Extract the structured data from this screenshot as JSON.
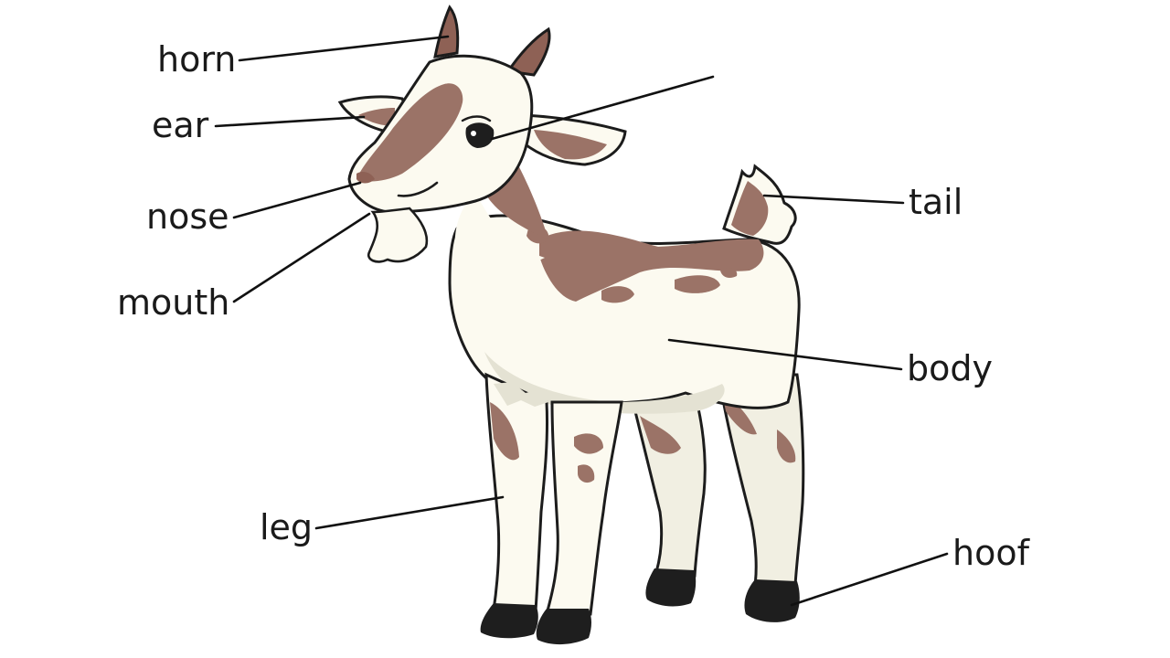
{
  "diagram": {
    "labels": {
      "horn": "horn",
      "ear": "ear",
      "nose": "nose",
      "mouth": "mouth",
      "leg": "leg",
      "tail": "tail",
      "body": "body",
      "hoof": "hoof",
      "eye": ""
    },
    "colors": {
      "fur": "#fcfaf0",
      "patch": "#9b7367",
      "horn": "#8e6155",
      "hoof": "#1e1e1e",
      "outline": "#1c1c1c",
      "shade": "#e4e2d3"
    }
  }
}
